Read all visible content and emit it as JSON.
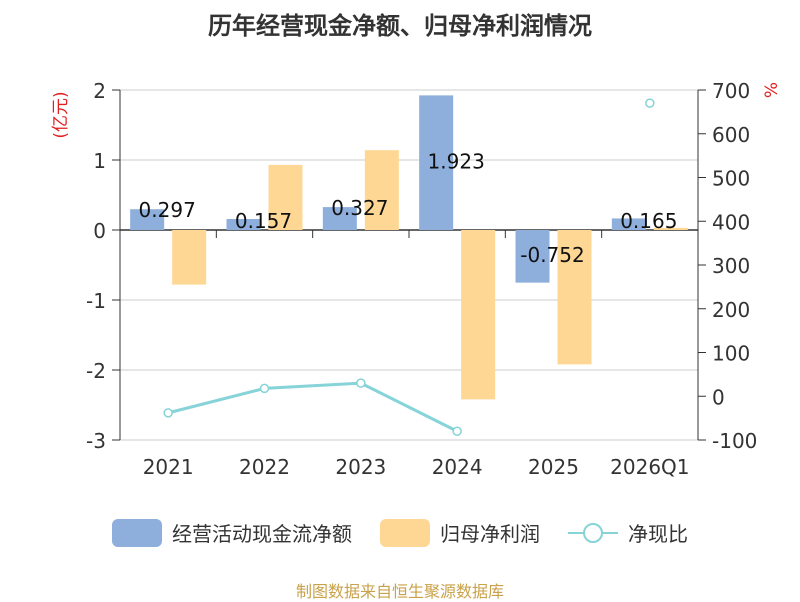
{
  "chart_data": {
    "type": "bar",
    "title": "历年经营现金净额、归母净利润情况",
    "categories": [
      "2021",
      "2022",
      "2023",
      "2024",
      "2025",
      "2026Q1"
    ],
    "y_left": {
      "label": "(亿元)",
      "range": [
        -3,
        2
      ],
      "ticks": [
        "2",
        "1",
        "0",
        "-1",
        "-2",
        "-3"
      ]
    },
    "y_right": {
      "label": "%",
      "range": [
        -100,
        700
      ],
      "ticks": [
        "700",
        "600",
        "500",
        "400",
        "300",
        "200",
        "100",
        "0",
        "-100"
      ]
    },
    "series": [
      {
        "name": "经营活动现金流净额",
        "type": "bar",
        "axis": "left",
        "color": "#8eaedb",
        "values": [
          0.297,
          0.157,
          0.327,
          1.923,
          -0.752,
          0.165
        ],
        "labels": [
          "0.297",
          "0.157",
          "0.327",
          "1.923",
          "-0.752",
          "0.165"
        ]
      },
      {
        "name": "归母净利润",
        "type": "bar",
        "axis": "left",
        "color": "#ffd794",
        "values": [
          -0.78,
          0.93,
          1.14,
          -2.42,
          -1.92,
          0.03
        ]
      },
      {
        "name": "净现比",
        "type": "line",
        "axis": "right",
        "color": "#86d3d8",
        "values": [
          -38,
          18,
          30,
          -80,
          null,
          670
        ]
      }
    ]
  },
  "source": "制图数据来自恒生聚源数据库"
}
